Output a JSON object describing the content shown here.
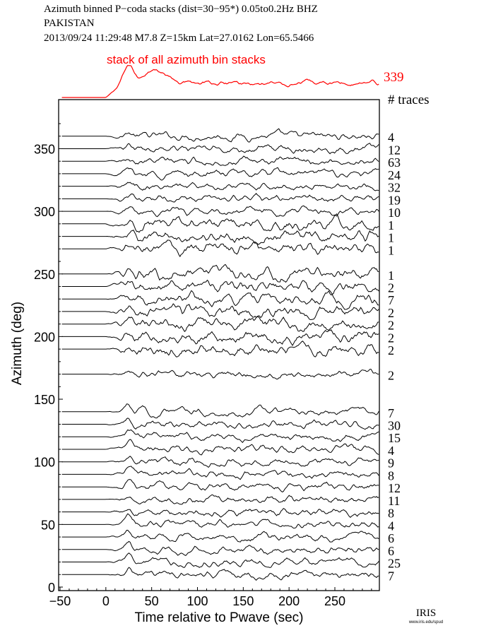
{
  "header": {
    "line1": "Azimuth binned P−coda stacks (dist=30−95*)  0.05to0.2Hz  BHZ",
    "line2": "PAKISTAN",
    "line3": "2013/09/24  11:29:48  M7.8  Z=15km Lat=27.0162 Lon=65.5466"
  },
  "chart_data": {
    "type": "line",
    "xlabel": "Time relative to Pwave (sec)",
    "ylabel": "Azimuth (deg)",
    "xlim": [
      -50,
      300
    ],
    "ylim": [
      0,
      375
    ],
    "xticks": [
      -50,
      0,
      50,
      100,
      150,
      200,
      250
    ],
    "yticks": [
      0,
      50,
      100,
      150,
      200,
      250,
      300,
      350
    ],
    "stack": {
      "label": "stack of all azimuth bin stacks",
      "count": "339",
      "color": "#ff0000"
    },
    "count_header": "# traces",
    "traces": [
      {
        "azimuth": 360,
        "count": "4"
      },
      {
        "azimuth": 350,
        "count": "12"
      },
      {
        "azimuth": 340,
        "count": "63"
      },
      {
        "azimuth": 330,
        "count": "24"
      },
      {
        "azimuth": 320,
        "count": "32"
      },
      {
        "azimuth": 310,
        "count": "19"
      },
      {
        "azimuth": 300,
        "count": "10"
      },
      {
        "azimuth": 290,
        "count": "1"
      },
      {
        "azimuth": 280,
        "count": "1"
      },
      {
        "azimuth": 270,
        "count": "1"
      },
      {
        "azimuth": 250,
        "count": "1"
      },
      {
        "azimuth": 240,
        "count": "2"
      },
      {
        "azimuth": 230,
        "count": "7"
      },
      {
        "azimuth": 220,
        "count": "2"
      },
      {
        "azimuth": 210,
        "count": "2"
      },
      {
        "azimuth": 200,
        "count": "2"
      },
      {
        "azimuth": 190,
        "count": "2"
      },
      {
        "azimuth": 170,
        "count": "2"
      },
      {
        "azimuth": 140,
        "count": "7"
      },
      {
        "azimuth": 130,
        "count": "30"
      },
      {
        "azimuth": 120,
        "count": "15"
      },
      {
        "azimuth": 110,
        "count": "4"
      },
      {
        "azimuth": 100,
        "count": "9"
      },
      {
        "azimuth": 90,
        "count": "8"
      },
      {
        "azimuth": 80,
        "count": "12"
      },
      {
        "azimuth": 70,
        "count": "11"
      },
      {
        "azimuth": 60,
        "count": "8"
      },
      {
        "azimuth": 50,
        "count": "4"
      },
      {
        "azimuth": 40,
        "count": "6"
      },
      {
        "azimuth": 30,
        "count": "6"
      },
      {
        "azimuth": 20,
        "count": "25"
      },
      {
        "azimuth": 10,
        "count": "7"
      }
    ]
  },
  "logo": {
    "text": "IRIS",
    "subtext": "www.iris.edu/spud"
  }
}
